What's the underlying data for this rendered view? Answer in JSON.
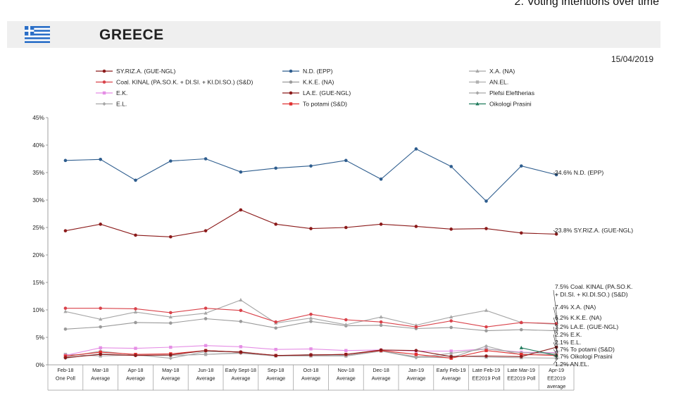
{
  "header": {
    "section_title": "2. Voting intentions over time",
    "country": "GREECE",
    "date": "15/04/2019"
  },
  "chart_data": {
    "type": "line",
    "title": "",
    "xlabel": "",
    "ylabel": "",
    "ylim": [
      0,
      45
    ],
    "yticks": [
      "0%",
      "5%",
      "10%",
      "15%",
      "20%",
      "25%",
      "30%",
      "35%",
      "40%",
      "45%"
    ],
    "grid": false,
    "legend_position": "top",
    "categories": [
      [
        "Feb-18",
        "One Poll"
      ],
      [
        "Mar-18",
        "Average"
      ],
      [
        "Apr-18",
        "Average"
      ],
      [
        "May-18",
        "Average"
      ],
      [
        "Jun-18",
        "Average"
      ],
      [
        "Early Sept-18",
        "Average"
      ],
      [
        "Sep-18",
        "Average"
      ],
      [
        "Oct-18",
        "Average"
      ],
      [
        "Nov-18",
        "Average"
      ],
      [
        "Dec-18",
        "Average"
      ],
      [
        "Jan-19",
        "Average"
      ],
      [
        "Early Feb-19",
        "Average"
      ],
      [
        "Late Feb-19",
        "EE2019 Poll"
      ],
      [
        "Late Mar-19",
        "EE2019 Poll"
      ],
      [
        "Apr-19",
        "EE2019",
        "average"
      ]
    ],
    "series": [
      {
        "name": "SY.RIZ.A. (GUE-NGL)",
        "color": "#8b1a1a",
        "marker": "circle",
        "values": [
          24.4,
          25.6,
          23.6,
          23.3,
          24.4,
          28.2,
          25.6,
          24.8,
          25.0,
          25.6,
          25.2,
          24.7,
          24.8,
          24.0,
          23.8
        ]
      },
      {
        "name": "N.D. (EPP)",
        "color": "#2e5d8e",
        "marker": "circle",
        "values": [
          37.2,
          37.4,
          33.6,
          37.1,
          37.5,
          35.1,
          35.8,
          36.2,
          37.2,
          33.8,
          39.3,
          36.1,
          29.8,
          36.2,
          34.6
        ]
      },
      {
        "name": "X.A. (NA)",
        "color": "#a6a6a6",
        "marker": "triangle",
        "values": [
          9.7,
          8.3,
          9.6,
          8.7,
          9.4,
          11.8,
          7.6,
          8.5,
          7.3,
          8.7,
          7.2,
          8.7,
          9.9,
          7.7,
          7.4
        ]
      },
      {
        "name": "Coal. KINAL (PA.SO.K. + DI.SI. + KI.DI.SO.) (S&D)",
        "color": "#d9424a",
        "marker": "circle",
        "values": [
          10.3,
          10.3,
          10.2,
          9.5,
          10.3,
          9.9,
          7.8,
          9.2,
          8.2,
          7.8,
          6.9,
          8.0,
          6.9,
          7.7,
          7.5
        ]
      },
      {
        "name": "K.K.E. (NA)",
        "color": "#9a9a9a",
        "marker": "circle",
        "values": [
          6.5,
          6.9,
          7.7,
          7.6,
          8.4,
          7.9,
          6.7,
          7.9,
          7.1,
          7.2,
          6.6,
          6.8,
          6.2,
          6.4,
          6.2
        ]
      },
      {
        "name": "AN.EL.",
        "color": "#b0b0b0",
        "marker": "square",
        "values": [
          1.9,
          1.6,
          1.8,
          1.7,
          1.9,
          2.2,
          1.6,
          1.6,
          1.6,
          2.5,
          1.5,
          1.6,
          1.4,
          1.3,
          1.2
        ]
      },
      {
        "name": "E.K.",
        "color": "#e58ee5",
        "marker": "square",
        "values": [
          1.7,
          3.1,
          3.0,
          3.2,
          3.5,
          3.3,
          2.8,
          2.9,
          2.6,
          2.7,
          2.5,
          2.5,
          2.9,
          2.3,
          2.2
        ]
      },
      {
        "name": "LA.E. (GUE-NGL)",
        "color": "#8b1a1a",
        "marker": "circle",
        "values": [
          1.3,
          1.9,
          1.7,
          1.8,
          2.6,
          2.3,
          1.7,
          1.8,
          1.9,
          2.7,
          2.6,
          1.5,
          1.6,
          1.5,
          3.2
        ]
      },
      {
        "name": "Plefsi Eleftherias",
        "color": "#a6a6a6",
        "marker": "diamond",
        "values": [
          1.4,
          2.5,
          1.8,
          1.2,
          2.4,
          2.4,
          1.6,
          1.9,
          1.7,
          2.6,
          1.4,
          1.3,
          3.4,
          1.8,
          1.9
        ]
      },
      {
        "name": "E.L.",
        "color": "#a6a6a6",
        "marker": "diamond",
        "values": [
          1.2,
          2.0,
          1.7,
          1.7,
          1.9,
          2.1,
          1.6,
          1.7,
          1.6,
          2.5,
          1.3,
          2.1,
          2.9,
          2.2,
          2.1
        ]
      },
      {
        "name": "To potami (S&D)",
        "color": "#e03030",
        "marker": "square",
        "values": [
          1.6,
          2.3,
          1.9,
          2.0,
          2.6,
          2.3,
          1.7,
          1.8,
          1.9,
          2.6,
          1.9,
          1.2,
          2.6,
          1.9,
          1.7
        ]
      },
      {
        "name": "Oikologi Prasini",
        "color": "#1f7a5c",
        "marker": "triangle",
        "values": [
          null,
          null,
          null,
          null,
          null,
          null,
          null,
          null,
          null,
          null,
          null,
          null,
          null,
          3.1,
          1.7
        ]
      }
    ],
    "end_labels": [
      {
        "lines": [
          "34.6% N.D. (EPP)"
        ],
        "value": 34.6
      },
      {
        "lines": [
          "23.8% SY.RIZ.A. (GUE-NGL)"
        ],
        "value": 23.8
      },
      {
        "lines": [
          "7.5% Coal. KINAL (PA.SO.K.",
          "+ DI.SI. + KI.DI.SO.) (S&D)"
        ],
        "value": 7.5
      },
      {
        "lines": [
          "7.4% X.A. (NA)"
        ],
        "value": 7.4
      },
      {
        "lines": [
          "6.2% K.K.E. (NA)"
        ],
        "value": 6.2
      },
      {
        "lines": [
          "3.2% LA.E. (GUE-NGL)"
        ],
        "value": 3.2
      },
      {
        "lines": [
          "2.2% E.K."
        ],
        "value": 2.2
      },
      {
        "lines": [
          "2.1% E.L."
        ],
        "value": 2.1
      },
      {
        "lines": [
          "1.7% To potami (S&D)"
        ],
        "value": 1.7
      },
      {
        "lines": [
          "1.7% Oikologi Prasini"
        ],
        "value": 1.7
      },
      {
        "lines": [
          "1.2% AN.EL."
        ],
        "value": 1.2
      }
    ]
  }
}
